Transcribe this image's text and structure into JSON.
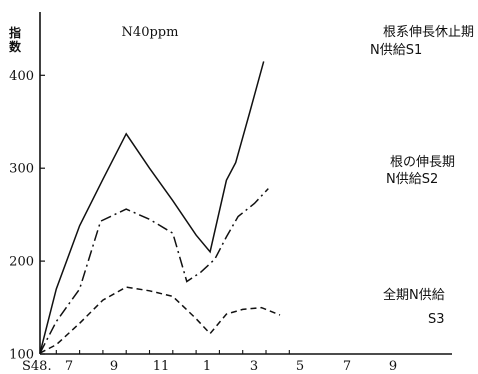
{
  "chart_data": {
    "type": "line",
    "title": "N40ppm",
    "ylabel": "指数",
    "ylim": [
      100,
      420
    ],
    "yticks": [
      100,
      200,
      300,
      400
    ],
    "x_tick_labels": [
      "S48.",
      "7",
      "9",
      "11",
      "1",
      "3",
      "5",
      "7",
      "9"
    ],
    "grid": false,
    "series": [
      {
        "name": "根系伸長休止期 N供給S1",
        "label_lines": [
          "根系伸長休止期",
          "N供給S1"
        ],
        "style": "solid",
        "points": [
          [
            5.3,
            101
          ],
          [
            6,
            170
          ],
          [
            7,
            238
          ],
          [
            8,
            288
          ],
          [
            9,
            337
          ],
          [
            10,
            300
          ],
          [
            11,
            265
          ],
          [
            12,
            228
          ],
          [
            12.6,
            210
          ],
          [
            13.3,
            287
          ],
          [
            13.7,
            306
          ],
          [
            14.3,
            360
          ],
          [
            14.9,
            415
          ]
        ]
      },
      {
        "name": "根の伸長期 N供給S2",
        "label_lines": [
          "根の伸長期",
          "N供給S2"
        ],
        "style": "dashdot",
        "points": [
          [
            5.3,
            101
          ],
          [
            6,
            135
          ],
          [
            7,
            170
          ],
          [
            7.9,
            243
          ],
          [
            9,
            256
          ],
          [
            10,
            245
          ],
          [
            11,
            230
          ],
          [
            11.6,
            178
          ],
          [
            12.2,
            188
          ],
          [
            12.8,
            202
          ],
          [
            13.3,
            226
          ],
          [
            13.8,
            248
          ],
          [
            14.5,
            262
          ],
          [
            15.1,
            278
          ]
        ]
      },
      {
        "name": "全期N供給 S3",
        "label_lines": [
          "全期N供給",
          "S3"
        ],
        "style": "dashed",
        "points": [
          [
            5.3,
            101
          ],
          [
            6,
            110
          ],
          [
            7,
            133
          ],
          [
            8,
            158
          ],
          [
            9,
            172
          ],
          [
            10,
            168
          ],
          [
            11,
            162
          ],
          [
            12,
            138
          ],
          [
            12.6,
            122
          ],
          [
            13.3,
            143
          ],
          [
            14,
            148
          ],
          [
            14.8,
            150
          ],
          [
            15.6,
            142
          ]
        ]
      }
    ]
  }
}
